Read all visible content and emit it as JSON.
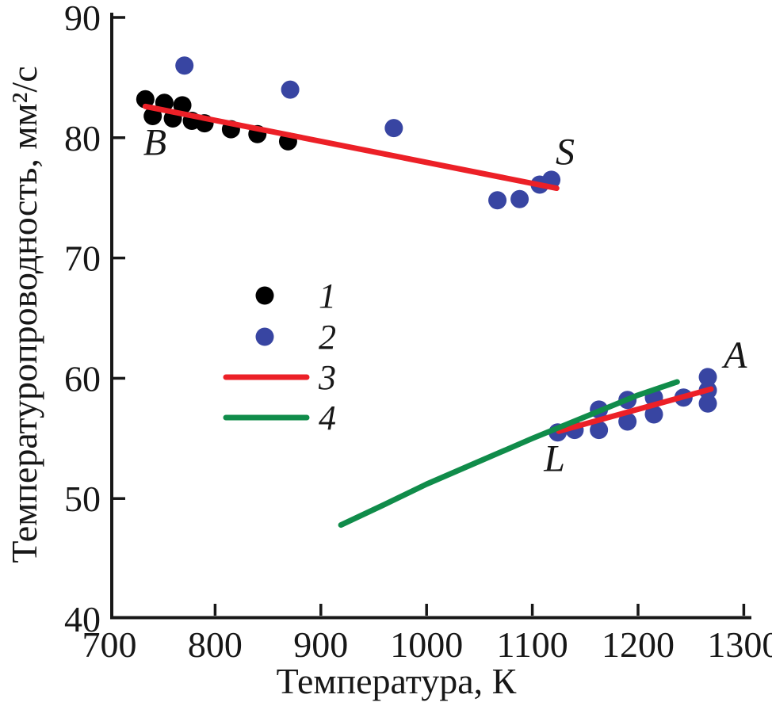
{
  "chart_data": {
    "type": "scatter",
    "title": "",
    "xlabel": "Температура, К",
    "ylabel": "Температуропроводность, мм²/с",
    "xlim": [
      700,
      1300
    ],
    "ylim": [
      40,
      90
    ],
    "x_ticks": [
      700,
      800,
      900,
      1000,
      1100,
      1200,
      1300
    ],
    "y_ticks": [
      40,
      50,
      60,
      70,
      80,
      90
    ],
    "grid": false,
    "legend_position": "inside-center-left",
    "series": [
      {
        "name": "1",
        "type": "scatter",
        "color": "#000000",
        "marker_radius": 11.5,
        "points": [
          [
            734,
            83.2
          ],
          [
            741,
            81.8
          ],
          [
            752,
            82.9
          ],
          [
            760,
            81.6
          ],
          [
            769,
            82.7
          ],
          [
            778,
            81.4
          ],
          [
            790,
            81.2
          ],
          [
            815,
            80.7
          ],
          [
            840,
            80.3
          ],
          [
            869,
            79.7
          ]
        ]
      },
      {
        "name": "2",
        "type": "scatter",
        "color": "#3845a2",
        "marker_radius": 11.5,
        "points": [
          [
            771,
            86.0
          ],
          [
            871,
            84.0
          ],
          [
            969,
            80.8
          ],
          [
            1067,
            74.8
          ],
          [
            1088,
            74.9
          ],
          [
            1107,
            76.1
          ],
          [
            1118,
            76.5
          ],
          [
            1124,
            55.5
          ],
          [
            1140,
            55.7
          ],
          [
            1163,
            55.7
          ],
          [
            1163,
            57.4
          ],
          [
            1190,
            56.4
          ],
          [
            1190,
            58.2
          ],
          [
            1215,
            57.0
          ],
          [
            1215,
            58.4
          ],
          [
            1243,
            58.4
          ],
          [
            1266,
            57.9
          ],
          [
            1266,
            59.0
          ],
          [
            1266,
            60.1
          ]
        ]
      },
      {
        "name": "3",
        "type": "line",
        "color": "#ec2027",
        "stroke_width": 7,
        "segments": [
          [
            [
              734,
              82.6
            ],
            [
              1123,
              75.8
            ]
          ],
          [
            [
              1125,
              55.6
            ],
            [
              1269,
              59.1
            ]
          ]
        ]
      },
      {
        "name": "4",
        "type": "line",
        "color": "#108c4a",
        "stroke_width": 7,
        "segments": [
          [
            [
              919,
              47.8
            ],
            [
              960,
              49.5
            ],
            [
              1000,
              51.2
            ],
            [
              1050,
              53.1
            ],
            [
              1100,
              55.0
            ],
            [
              1150,
              56.8
            ],
            [
              1200,
              58.6
            ],
            [
              1237,
              59.7
            ]
          ]
        ]
      }
    ],
    "annotations": [
      {
        "text": "B",
        "x": 743,
        "y": 79.7
      },
      {
        "text": "S",
        "x": 1131,
        "y": 78.9
      },
      {
        "text": "L",
        "x": 1121,
        "y": 53.4
      },
      {
        "text": "A",
        "x": 1292,
        "y": 62.0
      }
    ],
    "legend": {
      "entries": [
        {
          "label": "1",
          "marker": "dot",
          "color": "#000000"
        },
        {
          "label": "2",
          "marker": "dot",
          "color": "#3845a2"
        },
        {
          "label": "3",
          "marker": "line",
          "color": "#ec2027"
        },
        {
          "label": "4",
          "marker": "line",
          "color": "#108c4a"
        }
      ]
    }
  }
}
